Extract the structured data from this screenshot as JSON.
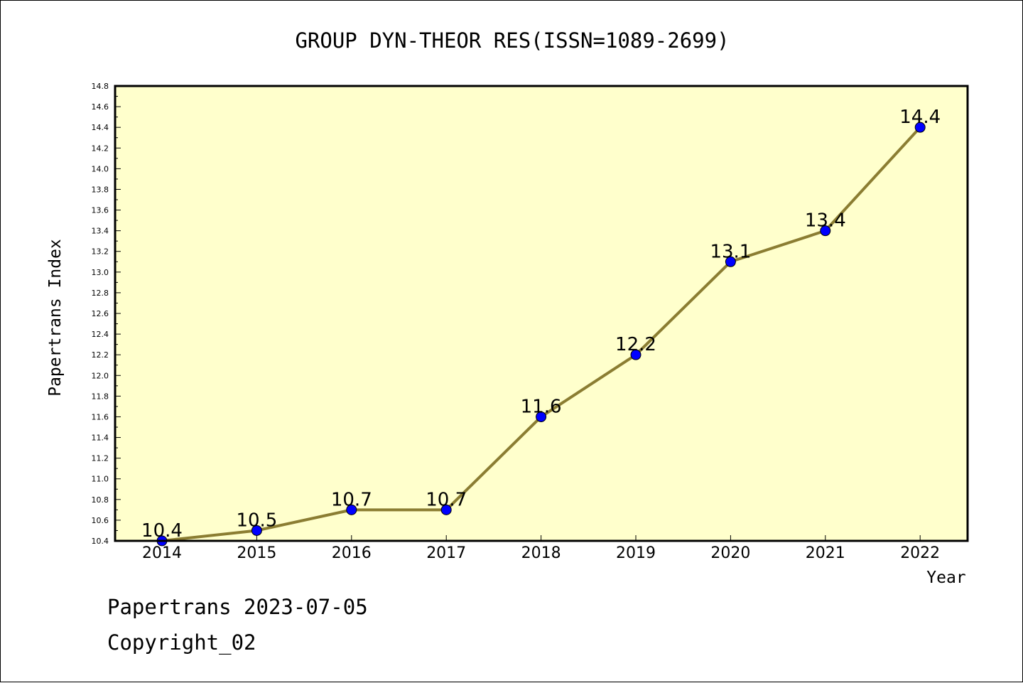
{
  "chart_data": {
    "type": "line",
    "title": "GROUP DYN-THEOR RES(ISSN=1089-2699)",
    "xlabel": "Year",
    "ylabel": "Papertrans Index",
    "categories": [
      "2014",
      "2015",
      "2016",
      "2017",
      "2018",
      "2019",
      "2020",
      "2021",
      "2022"
    ],
    "series": [
      {
        "values": [
          10.4,
          10.5,
          10.7,
          10.7,
          11.6,
          12.2,
          13.1,
          13.4,
          14.4
        ]
      }
    ],
    "data_labels": [
      "10.4",
      "10.5",
      "10.7",
      "10.7",
      "11.6",
      "12.2",
      "13.1",
      "13.4",
      "14.4"
    ],
    "ylim": [
      10.4,
      14.8
    ],
    "yticks": [
      "10.4",
      "10.6",
      "10.8",
      "11.0",
      "11.2",
      "11.4",
      "11.6",
      "11.8",
      "12.0",
      "12.2",
      "12.4",
      "12.6",
      "12.8",
      "13.0",
      "13.2",
      "13.4",
      "13.6",
      "13.8",
      "14.0",
      "14.2",
      "14.4",
      "14.6",
      "14.8"
    ],
    "grid": false,
    "colors": {
      "plot_background": "#ffffcc",
      "line": "#8b7d32",
      "marker": "#0000ff"
    }
  },
  "footer": {
    "date_line": "Papertrans 2023-07-05",
    "copyright": "Copyright_02"
  }
}
